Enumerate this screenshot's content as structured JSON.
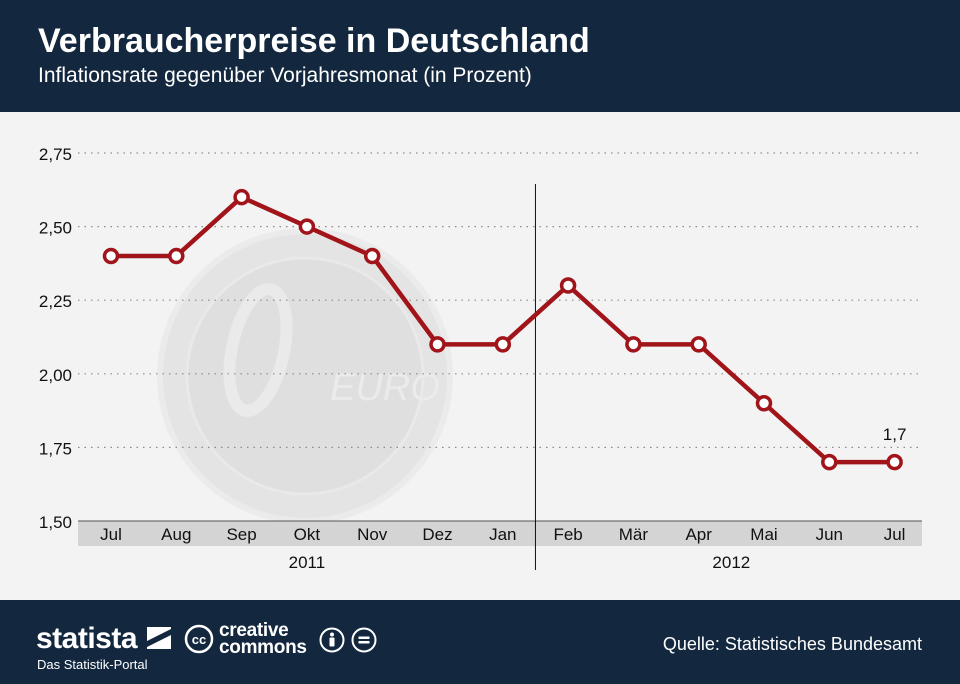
{
  "header": {
    "title": "Verbraucherpreise in Deutschland",
    "subtitle": "Inflationsrate gegenüber Vorjahresmonat (in Prozent)"
  },
  "footer": {
    "brand": "statista",
    "tagline": "Das Statistik-Portal",
    "cc_line1": "creative",
    "cc_line2": "commons",
    "cc_symbol": "cc",
    "source": "Quelle: Statistisches Bundesamt"
  },
  "coin": {
    "watermark_text": "EURO"
  },
  "colors": {
    "header_bg": "#13283f",
    "line": "#a0141a",
    "bar": "#d4d4d4"
  },
  "chart_data": {
    "type": "line",
    "title": "Verbraucherpreise in Deutschland",
    "subtitle": "Inflationsrate gegenüber Vorjahresmonat (in Prozent)",
    "categories": [
      "Jul",
      "Aug",
      "Sep",
      "Okt",
      "Nov",
      "Dez",
      "Jan",
      "Feb",
      "Mär",
      "Apr",
      "Mai",
      "Jun",
      "Jul"
    ],
    "values": [
      2.4,
      2.4,
      2.6,
      2.5,
      2.4,
      2.1,
      2.1,
      2.3,
      2.1,
      2.1,
      1.9,
      1.7,
      1.7
    ],
    "year_groups": [
      {
        "label": "2011",
        "start": 0,
        "end": 6
      },
      {
        "label": "2012",
        "start": 7,
        "end": 12
      }
    ],
    "yticks": [
      1.5,
      1.75,
      2.0,
      2.25,
      2.5,
      2.75
    ],
    "ytick_labels": [
      "1,50",
      "1,75",
      "2,00",
      "2,25",
      "2,50",
      "2,75"
    ],
    "ylim": [
      1.5,
      2.75
    ],
    "annotation": {
      "index": 12,
      "text": "1,7"
    },
    "xlabel": "",
    "ylabel": "",
    "grid": true
  }
}
